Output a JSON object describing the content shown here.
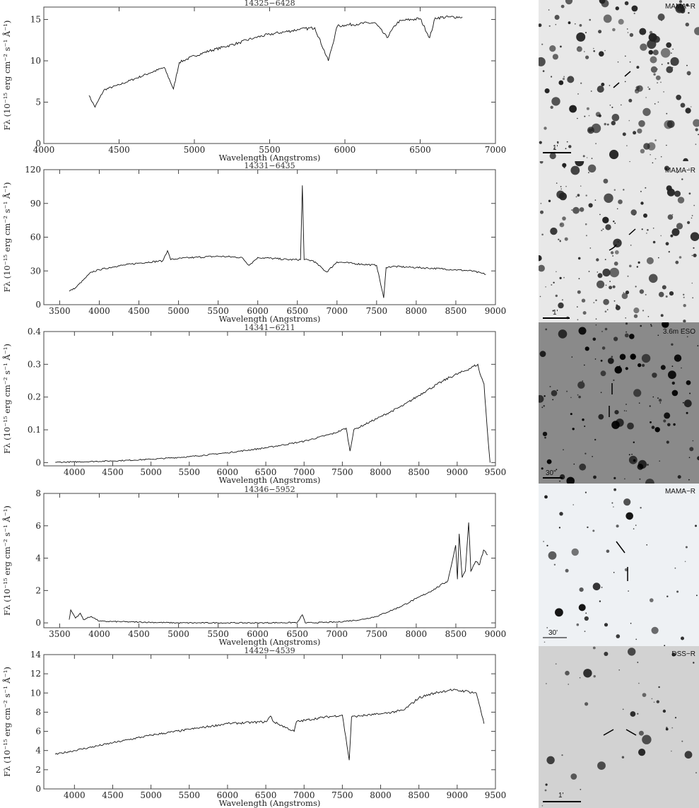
{
  "chart_data": [
    {
      "type": "line",
      "title": "14325−6428",
      "xlabel": "Wavelength (Angstroms)",
      "ylabel": "Fλ (10⁻¹⁵ erg cm⁻² s⁻¹ Å⁻¹)",
      "xlim": [
        4000,
        7000
      ],
      "ylim": [
        0,
        16.5
      ],
      "xticks": [
        4000,
        4500,
        5000,
        5500,
        6000,
        6500,
        7000
      ],
      "yticks": [
        0,
        5,
        10,
        15
      ],
      "x": [
        4300,
        4340,
        4400,
        4500,
        4600,
        4700,
        4800,
        4861,
        4900,
        5000,
        5100,
        5200,
        5300,
        5400,
        5500,
        5600,
        5700,
        5800,
        5890,
        5950,
        6000,
        6100,
        6200,
        6280,
        6350,
        6400,
        6450,
        6500,
        6563,
        6600,
        6700,
        6780
      ],
      "y": [
        5.8,
        4.4,
        6.5,
        7.1,
        7.8,
        8.5,
        9.2,
        6.6,
        9.8,
        10.6,
        11.2,
        11.7,
        12.2,
        12.8,
        13.2,
        13.5,
        13.8,
        14.0,
        10.0,
        14.2,
        14.3,
        14.5,
        14.6,
        12.8,
        14.7,
        14.9,
        15.0,
        15.1,
        12.8,
        15.2,
        15.3,
        15.3
      ],
      "image_label": "MAMA−R",
      "scale_label": "1'"
    },
    {
      "type": "line",
      "title": "14331−6435",
      "xlabel": "Wavelength (Angstroms)",
      "ylabel": "Fλ (10⁻¹⁵ erg cm⁻² s⁻¹ Å⁻¹)",
      "xlim": [
        3300,
        9000
      ],
      "ylim": [
        0,
        120
      ],
      "xticks": [
        3500,
        4000,
        4500,
        5000,
        5500,
        6000,
        6500,
        7000,
        7500,
        8000,
        8500,
        9000
      ],
      "yticks": [
        0,
        30,
        60,
        90,
        120
      ],
      "x": [
        3620,
        3700,
        3800,
        3900,
        4000,
        4200,
        4500,
        4800,
        4861,
        4900,
        5000,
        5200,
        5500,
        5800,
        5890,
        6000,
        6200,
        6400,
        6540,
        6563,
        6585,
        6700,
        6870,
        7000,
        7300,
        7500,
        7590,
        7620,
        7700,
        8000,
        8300,
        8500,
        8700,
        8880
      ],
      "y": [
        12,
        15,
        22,
        29,
        31,
        34,
        37,
        39,
        48,
        40,
        41,
        42,
        43,
        42,
        35,
        42,
        41,
        40,
        40,
        106,
        40,
        39,
        29,
        38,
        36,
        35,
        6,
        33,
        34,
        33,
        32,
        31,
        30,
        27
      ],
      "image_label": "MAMA−R",
      "scale_label": "1'"
    },
    {
      "type": "line",
      "title": "14341−6211",
      "xlabel": "Wavelength (Angstroms)",
      "ylabel": "Fλ (10⁻¹⁵ erg cm⁻² s⁻¹ Å⁻¹)",
      "xlim": [
        3600,
        9500
      ],
      "ylim": [
        -0.01,
        0.4
      ],
      "xticks": [
        4000,
        4500,
        5000,
        5500,
        6000,
        6500,
        7000,
        7500,
        8000,
        8500,
        9000,
        9500
      ],
      "yticks": [
        0,
        0.1,
        0.2,
        0.3,
        0.4
      ],
      "x": [
        3750,
        4000,
        4500,
        5000,
        5500,
        6000,
        6500,
        7000,
        7400,
        7550,
        7600,
        7650,
        8000,
        8300,
        8600,
        8900,
        9100,
        9270,
        9300,
        9350,
        9400,
        9430
      ],
      "y": [
        0.001,
        0.002,
        0.005,
        0.01,
        0.018,
        0.03,
        0.045,
        0.065,
        0.09,
        0.105,
        0.035,
        0.1,
        0.14,
        0.175,
        0.22,
        0.26,
        0.28,
        0.3,
        0.27,
        0.24,
        0.08,
        0.0
      ],
      "image_label": "3.6m ESO",
      "scale_label": "30\""
    },
    {
      "type": "line",
      "title": "14346−5952",
      "xlabel": "Wavelength (Angstroms)",
      "ylabel": "Fλ (10⁻¹⁵ erg cm⁻² s⁻¹ Å⁻¹)",
      "xlim": [
        3300,
        9000
      ],
      "ylim": [
        -0.3,
        8
      ],
      "xticks": [
        3500,
        4000,
        4500,
        5000,
        5500,
        6000,
        6500,
        7000,
        7500,
        8000,
        8500,
        9000
      ],
      "yticks": [
        0,
        2,
        4,
        6,
        8
      ],
      "x": [
        3620,
        3640,
        3700,
        3760,
        3800,
        3900,
        4000,
        4500,
        5000,
        5500,
        6000,
        6500,
        6563,
        6600,
        7000,
        7300,
        7500,
        7600,
        7800,
        8000,
        8200,
        8400,
        8498,
        8520,
        8542,
        8580,
        8620,
        8662,
        8690,
        8750,
        8800,
        8850,
        8900
      ],
      "y": [
        0.2,
        0.8,
        0.3,
        0.6,
        0.2,
        0.4,
        0.1,
        0.05,
        0.0,
        0.0,
        0.0,
        0.02,
        0.5,
        0.0,
        0.05,
        0.2,
        0.4,
        0.6,
        1.0,
        1.5,
        2.0,
        2.6,
        4.8,
        2.7,
        5.5,
        2.8,
        3.2,
        6.2,
        3.2,
        3.8,
        3.6,
        4.5,
        4.2
      ],
      "image_label": "MAMA−R",
      "scale_label": "30'"
    },
    {
      "type": "line",
      "title": "14429−4539",
      "xlabel": "Wavelength (Angstroms)",
      "ylabel": "Fλ (10⁻¹⁵ erg cm⁻² s⁻¹ Å⁻¹)",
      "xlim": [
        3600,
        9500
      ],
      "ylim": [
        0,
        14
      ],
      "xticks": [
        4000,
        4500,
        5000,
        5500,
        6000,
        6500,
        7000,
        7500,
        8000,
        8500,
        9000,
        9500
      ],
      "yticks": [
        0,
        2,
        4,
        6,
        8,
        10,
        12,
        14
      ],
      "x": [
        3750,
        4000,
        4500,
        5000,
        5500,
        6000,
        6500,
        6563,
        6600,
        6870,
        6900,
        7200,
        7500,
        7590,
        7620,
        7700,
        8000,
        8300,
        8500,
        8700,
        8900,
        9100,
        9250,
        9300,
        9350
      ],
      "y": [
        3.6,
        4.0,
        4.8,
        5.6,
        6.2,
        6.8,
        7.0,
        7.6,
        7.0,
        6.0,
        7.0,
        7.4,
        7.7,
        3.0,
        7.5,
        7.6,
        7.8,
        8.2,
        9.5,
        10.0,
        10.3,
        10.2,
        10.0,
        8.5,
        6.8
      ],
      "image_label": "DSS−R",
      "scale_label": "1'"
    }
  ]
}
